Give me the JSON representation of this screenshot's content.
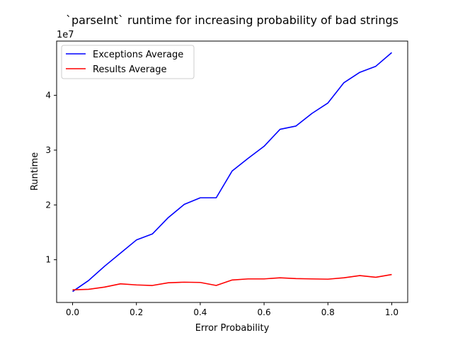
{
  "chart_data": {
    "type": "line",
    "title": "`parseInt` runtime for increasing probability of bad strings",
    "xlabel": "Error Probability",
    "ylabel": "Runtime",
    "y_offset_label": "1e7",
    "xlim": [
      -0.05,
      1.05
    ],
    "ylim": [
      2200000,
      49900000
    ],
    "xticks": [
      0.0,
      0.2,
      0.4,
      0.6,
      0.8,
      1.0
    ],
    "xtick_labels": [
      "0.0",
      "0.2",
      "0.4",
      "0.6",
      "0.8",
      "1.0"
    ],
    "yticks": [
      10000000,
      20000000,
      30000000,
      40000000
    ],
    "ytick_labels": [
      "1",
      "2",
      "3",
      "4"
    ],
    "legend_position": "upper-left",
    "x": [
      0.0,
      0.05,
      0.1,
      0.15,
      0.2,
      0.25,
      0.3,
      0.35,
      0.4,
      0.45,
      0.5,
      0.55,
      0.6,
      0.65,
      0.7,
      0.75,
      0.8,
      0.85,
      0.9,
      0.95,
      1.0
    ],
    "series": [
      {
        "name": "Exceptions Average",
        "color": "#0000ff",
        "values": [
          4200000,
          6200000,
          8800000,
          11200000,
          13600000,
          14700000,
          17700000,
          20100000,
          21300000,
          21300000,
          26200000,
          28500000,
          30700000,
          33800000,
          34400000,
          36700000,
          38600000,
          42300000,
          44200000,
          45300000,
          47800000
        ]
      },
      {
        "name": "Results Average",
        "color": "#ff0000",
        "values": [
          4500000,
          4600000,
          5000000,
          5600000,
          5400000,
          5300000,
          5800000,
          5900000,
          5850000,
          5300000,
          6300000,
          6500000,
          6500000,
          6700000,
          6550000,
          6500000,
          6450000,
          6700000,
          7100000,
          6800000,
          7300000
        ]
      }
    ]
  }
}
